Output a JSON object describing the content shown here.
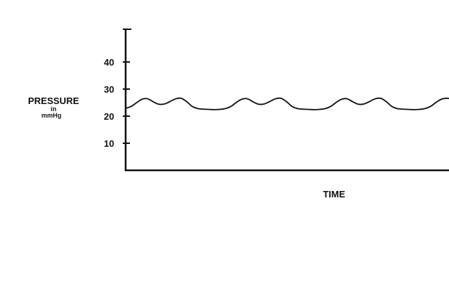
{
  "chart_data": {
    "type": "line",
    "title": "",
    "xlabel": "TIME",
    "ylabel": {
      "line1": "PRESSURE",
      "line2": "in",
      "line3": "mmHg"
    },
    "yticks": [
      "10",
      "20",
      "30",
      "40"
    ],
    "ylim": [
      0,
      52
    ],
    "xlim": [
      0,
      3.5
    ],
    "grid": false,
    "legend": "none",
    "color": "#111111",
    "series": [
      {
        "x": [
          0,
          0.06,
          0.12,
          0.18,
          0.24,
          0.3,
          0.36,
          0.42,
          0.48,
          0.54,
          0.6,
          0.66,
          0.72,
          0.78,
          0.84,
          0.9,
          0.96,
          1.02,
          1.08,
          1.14,
          1.2,
          1.26,
          1.32,
          1.38,
          1.44,
          1.5,
          1.56,
          1.62,
          1.68,
          1.74,
          1.8,
          1.86,
          1.92,
          1.98,
          2.04,
          2.1,
          2.16,
          2.22,
          2.28,
          2.34,
          2.4,
          2.46,
          2.52,
          2.58,
          2.64,
          2.7,
          2.76,
          2.82,
          2.88,
          2.94,
          3.0,
          3.06,
          3.12,
          3.18,
          3.24,
          3.3,
          3.36,
          3.42,
          3.48,
          3.5
        ],
        "y": [
          22.9,
          23.6,
          25.0,
          26.3,
          26.4,
          25.3,
          24.4,
          24.5,
          25.4,
          26.4,
          26.6,
          25.4,
          23.6,
          22.8,
          22.6,
          22.5,
          22.4,
          22.5,
          22.8,
          23.6,
          25.1,
          26.3,
          26.4,
          25.3,
          24.4,
          24.5,
          25.4,
          26.4,
          26.6,
          25.4,
          23.6,
          22.8,
          22.6,
          22.5,
          22.4,
          22.5,
          22.8,
          23.6,
          25.1,
          26.3,
          26.4,
          25.3,
          24.4,
          24.5,
          25.4,
          26.4,
          26.6,
          25.4,
          23.6,
          22.8,
          22.6,
          22.5,
          22.4,
          22.5,
          22.8,
          23.6,
          25.1,
          26.3,
          26.6,
          26.5
        ]
      }
    ]
  }
}
